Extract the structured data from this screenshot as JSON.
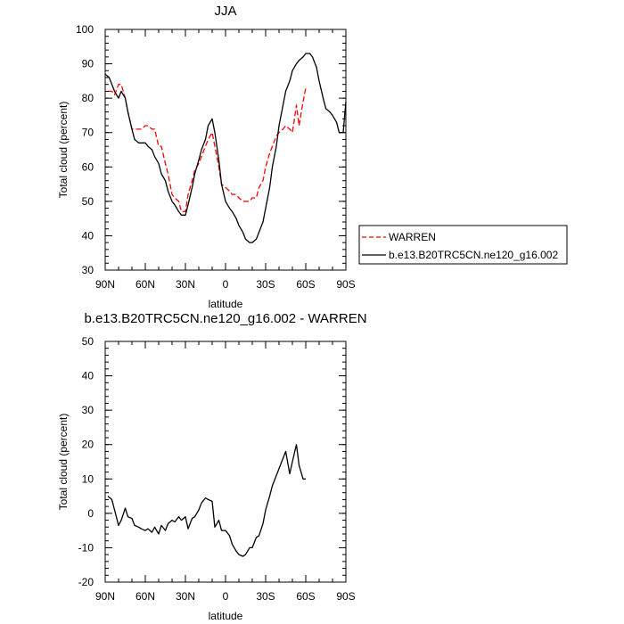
{
  "chart_data": [
    {
      "type": "line",
      "title": "JJA",
      "xlabel": "latitude",
      "ylabel": "Total cloud (percent)",
      "xlim": [
        90,
        -90
      ],
      "ylim": [
        30,
        100
      ],
      "x_tick_values": [
        90,
        60,
        30,
        0,
        -30,
        -60,
        -90
      ],
      "x_tick_labels": [
        "90N",
        "60N",
        "30N",
        "0",
        "30S",
        "60S",
        "90S"
      ],
      "y_tick_values": [
        30,
        40,
        50,
        60,
        70,
        80,
        90,
        100
      ],
      "y_tick_labels": [
        "30",
        "40",
        "50",
        "60",
        "70",
        "80",
        "90",
        "100"
      ],
      "legend_position": "right",
      "series": [
        {
          "name": "WARREN",
          "color": "#ff0000",
          "dash": "dashed",
          "x": [
            88,
            85,
            83,
            80,
            78,
            75,
            73,
            70,
            68,
            65,
            63,
            60,
            58,
            55,
            53,
            50,
            48,
            45,
            43,
            40,
            38,
            35,
            33,
            30,
            28,
            25,
            23,
            20,
            18,
            15,
            13,
            10,
            8,
            5,
            3,
            0,
            -3,
            -5,
            -8,
            -10,
            -13,
            -15,
            -18,
            -20,
            -23,
            -25,
            -28,
            -30,
            -33,
            -35,
            -38,
            -40,
            -43,
            -45,
            -48,
            -50,
            -53,
            -55,
            -58,
            -60
          ],
          "y": [
            82,
            82,
            81,
            84,
            84,
            80,
            76,
            71,
            71,
            71,
            71,
            72,
            72,
            71,
            71,
            66,
            66,
            61,
            58,
            52,
            51,
            50,
            47,
            47,
            52,
            56,
            59,
            61,
            63,
            66,
            68,
            70,
            66,
            60,
            55,
            54,
            53,
            52,
            52,
            51,
            50,
            50,
            50,
            51,
            51,
            54,
            56,
            60,
            64,
            66,
            69,
            70,
            71,
            72,
            71,
            70,
            78,
            72,
            79,
            83
          ]
        },
        {
          "name": "b.e13.B20TRC5CN.ne120_g16.002",
          "color": "#000000",
          "dash": "solid",
          "x": [
            90,
            87,
            85,
            83,
            80,
            78,
            75,
            73,
            70,
            68,
            65,
            63,
            60,
            58,
            55,
            53,
            50,
            48,
            45,
            43,
            40,
            38,
            35,
            33,
            30,
            28,
            25,
            23,
            20,
            18,
            15,
            13,
            10,
            8,
            5,
            3,
            0,
            -3,
            -5,
            -8,
            -10,
            -13,
            -15,
            -18,
            -20,
            -23,
            -25,
            -28,
            -30,
            -33,
            -35,
            -38,
            -40,
            -43,
            -45,
            -48,
            -50,
            -53,
            -55,
            -58,
            -60,
            -63,
            -65,
            -68,
            -70,
            -73,
            -75,
            -78,
            -80,
            -83,
            -85,
            -88,
            -90
          ],
          "y": [
            87,
            86,
            84,
            82,
            80,
            82,
            80,
            76,
            71,
            68,
            67,
            67,
            67,
            66,
            65,
            63,
            61,
            58,
            56,
            53,
            50,
            49,
            47,
            46,
            46,
            49,
            54,
            58,
            62,
            65,
            68,
            72,
            74,
            70,
            62,
            55,
            50,
            48,
            47,
            45,
            43,
            41,
            39,
            38,
            38,
            39,
            41,
            44,
            48,
            54,
            60,
            66,
            72,
            78,
            82,
            85,
            88,
            90,
            91,
            92,
            93,
            93,
            92,
            89,
            85,
            80,
            77,
            76,
            75,
            73,
            70,
            70,
            79
          ]
        }
      ]
    },
    {
      "type": "line",
      "title": "b.e13.B20TRC5CN.ne120_g16.002 - WARREN",
      "xlabel": "latitude",
      "ylabel": "Total cloud (percent)",
      "xlim": [
        90,
        -90
      ],
      "ylim": [
        -20,
        50
      ],
      "x_tick_values": [
        90,
        60,
        30,
        0,
        -30,
        -60,
        -90
      ],
      "x_tick_labels": [
        "90N",
        "60N",
        "30N",
        "0",
        "30S",
        "60S",
        "90S"
      ],
      "y_tick_values": [
        -20,
        -10,
        0,
        10,
        20,
        30,
        40,
        50
      ],
      "y_tick_labels": [
        "-20",
        "-10",
        "0",
        "10",
        "20",
        "30",
        "40",
        "50"
      ],
      "series": [
        {
          "color": "#000000",
          "dash": "solid",
          "x": [
            88,
            85,
            83,
            80,
            78,
            75,
            73,
            70,
            68,
            65,
            63,
            60,
            58,
            55,
            53,
            50,
            48,
            45,
            43,
            40,
            38,
            35,
            33,
            30,
            28,
            25,
            23,
            20,
            18,
            15,
            13,
            10,
            8,
            5,
            3,
            0,
            -3,
            -5,
            -8,
            -10,
            -13,
            -15,
            -18,
            -20,
            -23,
            -25,
            -28,
            -30,
            -33,
            -35,
            -38,
            -40,
            -43,
            -45,
            -48,
            -50,
            -53,
            -55,
            -58,
            -60
          ],
          "y": [
            5,
            4,
            1,
            -3.5,
            -2,
            1.5,
            -1,
            -1.5,
            -3.5,
            -4,
            -4.5,
            -5,
            -4.5,
            -5.5,
            -4,
            -6,
            -3.5,
            -5,
            -3,
            -2,
            -2.5,
            -1,
            -2,
            -1,
            -4.5,
            -1.5,
            -1,
            1,
            3,
            4.5,
            4,
            3.5,
            -4,
            -2,
            -5,
            -5,
            -6.5,
            -9,
            -11,
            -12,
            -12.5,
            -12,
            -10,
            -10,
            -7,
            -6.5,
            -3,
            1,
            5,
            8,
            11,
            13,
            16,
            18,
            11.5,
            15,
            20,
            14,
            10,
            10
          ]
        }
      ]
    }
  ]
}
